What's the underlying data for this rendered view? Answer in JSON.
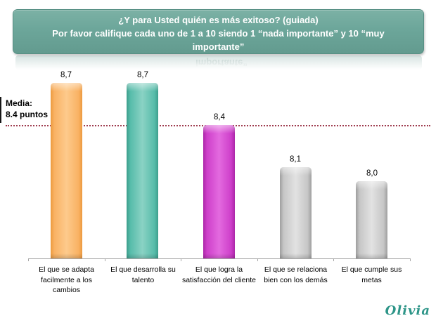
{
  "banner": {
    "line1": "¿Y para Usted quién es más exitoso? (guiada)",
    "line2": "Por favor califique cada uno de 1 a 10 siendo 1 “nada importante” y 10 “muy importante”",
    "reflection_text": "importante”",
    "bg_color": "#6ca69a",
    "text_color": "#ffffff"
  },
  "mean_annotation": {
    "label": "Media:",
    "value": "8.4 puntos",
    "mean": 8.4,
    "line_color": "#9e3b4e"
  },
  "chart_data": {
    "type": "bar",
    "title": "¿Y para Usted quién es más exitoso? (guiada) Por favor califique cada uno de 1 a 10 siendo 1 “nada importante” y 10 “muy importante”",
    "categories": [
      "El que se adapta facilmente a los cambios",
      "El que desarrolla su talento",
      "El que logra la satisfacción del cliente",
      "El que se relaciona bien con los demás",
      "El que cumple sus metas"
    ],
    "values": [
      8.7,
      8.7,
      8.4,
      8.1,
      8.0
    ],
    "value_labels": [
      "8,7",
      "8,7",
      "8,4",
      "8,1",
      "8,0"
    ],
    "mean_line": 8.4,
    "ylim": [
      7.45,
      8.9
    ],
    "xlabel": "",
    "ylabel": "",
    "grid": false,
    "legend": false,
    "bar_colors": [
      {
        "name": "orange",
        "base": "#f9b264",
        "light": "#fdca8c",
        "dark": "#ed9a3f"
      },
      {
        "name": "teal",
        "base": "#57bcaa",
        "light": "#8ad2c4",
        "dark": "#3d9e8c"
      },
      {
        "name": "magenta",
        "base": "#ce3fca",
        "light": "#e36adf",
        "dark": "#ac27a8"
      },
      {
        "name": "gray",
        "base": "#c6c6c6",
        "light": "#e2e2e2",
        "dark": "#9e9e9e"
      },
      {
        "name": "gray",
        "base": "#c6c6c6",
        "light": "#e2e2e2",
        "dark": "#9e9e9e"
      }
    ],
    "axis_color": "#a6a6a6"
  },
  "branding": {
    "logo_text": "Olivia",
    "logo_color": "#2d9588"
  }
}
